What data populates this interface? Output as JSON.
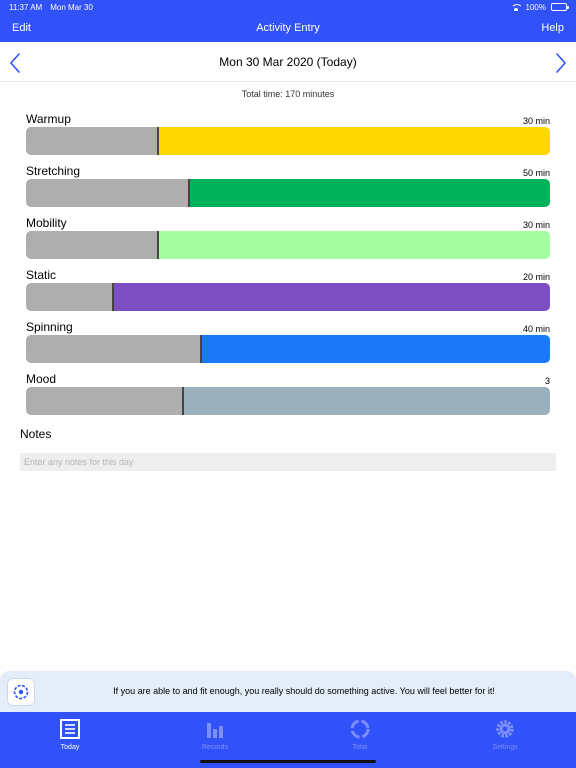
{
  "status_bar": {
    "time": "11:37 AM",
    "date": "Mon Mar 30",
    "battery": "100%"
  },
  "nav": {
    "title": "Activity Entry",
    "left_button": "Edit",
    "right_button": "Help"
  },
  "date_selector": {
    "date": "Mon 30 Mar 2020 (Today)"
  },
  "total_time": "Total time: 170 minutes",
  "activities": [
    {
      "label": "Warmup",
      "value": "30 min",
      "fraction": 0.25,
      "color": "#ffd800"
    },
    {
      "label": "Stretching",
      "value": "50 min",
      "fraction": 0.31,
      "color": "#00b25a"
    },
    {
      "label": "Mobility",
      "value": "30 min",
      "fraction": 0.25,
      "color": "#a6fea3"
    },
    {
      "label": "Static",
      "value": "20 min",
      "fraction": 0.165,
      "color": "#7c4ec2"
    },
    {
      "label": "Spinning",
      "value": "40 min",
      "fraction": 0.333,
      "color": "#1a7af8"
    },
    {
      "label": "Mood",
      "value": "3",
      "fraction": 0.298,
      "color": "#9ab1bd"
    }
  ],
  "notes": {
    "label": "Notes",
    "placeholder": "Enter any notes for this day",
    "value": ""
  },
  "tip": "If you are able to and fit enough, you really should do something active. You will feel better for it!",
  "tabs": [
    {
      "label": "Today",
      "icon": "list-icon",
      "active": true
    },
    {
      "label": "Records",
      "icon": "bar-chart-icon",
      "active": false
    },
    {
      "label": "Total",
      "icon": "ring-icon",
      "active": false
    },
    {
      "label": "Settings",
      "icon": "gear-icon",
      "active": false
    }
  ],
  "colors": {
    "accent": "#3152f8",
    "track_done": "#aeaeae"
  }
}
